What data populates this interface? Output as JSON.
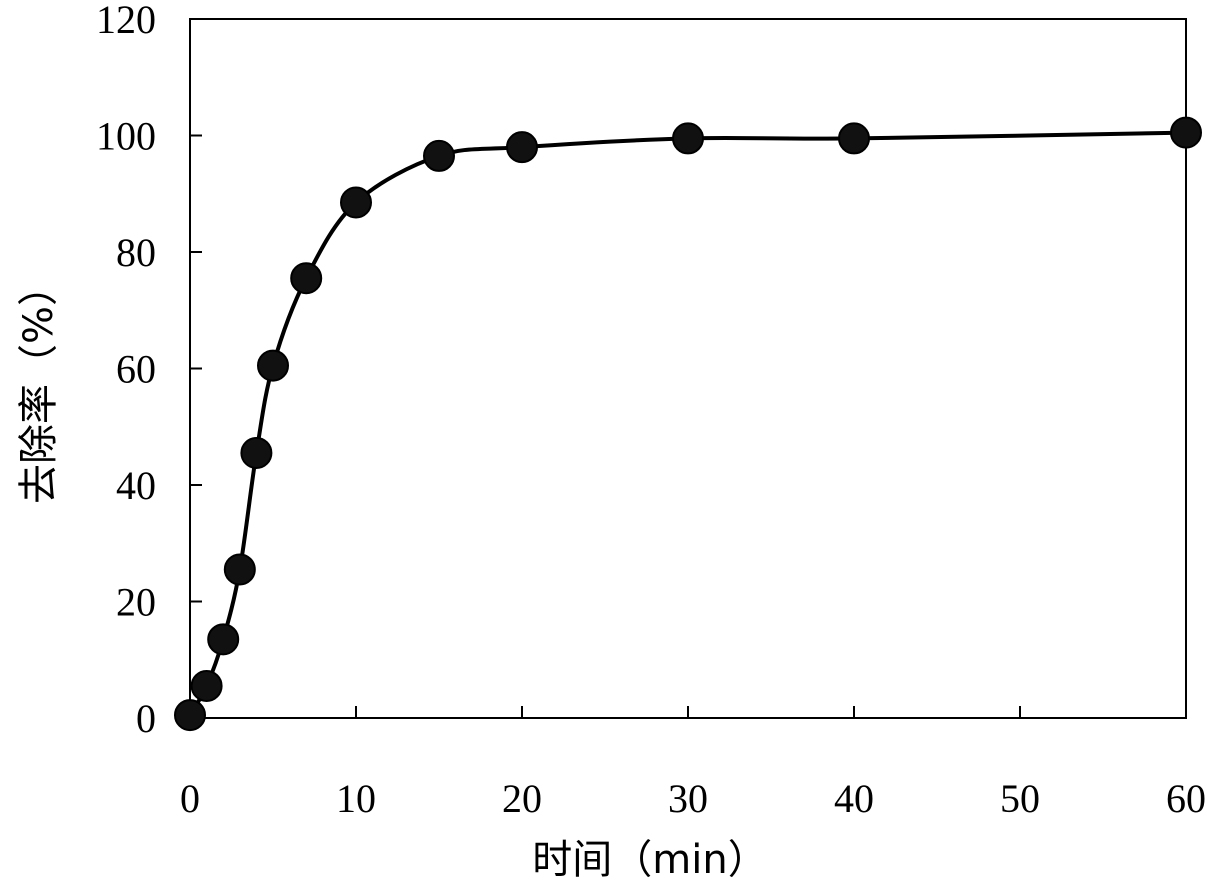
{
  "chart_data": {
    "type": "line",
    "title": "",
    "xlabel": "时间（min）",
    "ylabel": "去除率（%）",
    "xlim": [
      0,
      60
    ],
    "ylim": [
      0,
      120
    ],
    "x_ticks": [
      0,
      10,
      20,
      30,
      40,
      50,
      60
    ],
    "y_ticks": [
      0,
      20,
      40,
      60,
      80,
      100,
      120
    ],
    "grid": false,
    "legend": "none",
    "colors": {
      "line": "#000000",
      "marker": "#111111"
    },
    "series": [
      {
        "x": [
          0,
          1,
          2,
          3,
          4,
          5,
          7,
          10,
          15,
          20,
          30,
          40,
          60
        ],
        "values": [
          0.5,
          5.5,
          13.5,
          25.5,
          45.5,
          60.5,
          75.5,
          88.5,
          96.5,
          98,
          99.5,
          99.5,
          100.5
        ]
      }
    ]
  }
}
